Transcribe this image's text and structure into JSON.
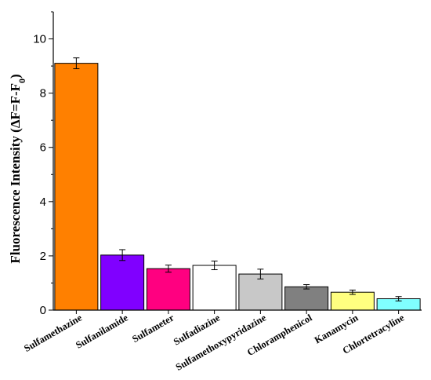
{
  "chart_data": {
    "type": "bar",
    "title": "",
    "xlabel": "",
    "ylabel": "Fluorescence Intensity (ΔF=F-F",
    "ylabel_subscript": "0",
    "ylabel_suffix": ")",
    "ylim": [
      0,
      11
    ],
    "yticks": [
      "0",
      "2",
      "4",
      "6",
      "8",
      "10"
    ],
    "categories": [
      "Sulfamethazine",
      "Sulfanilamide",
      "Sulfameter",
      "Sulfadiazine",
      "Sulfamethoxypyridazine",
      "Chloramphenicol",
      "Kanamycin",
      "Chlortetracyline"
    ],
    "values": [
      9.1,
      2.03,
      1.53,
      1.65,
      1.33,
      0.86,
      0.66,
      0.42
    ],
    "errors": [
      0.2,
      0.2,
      0.13,
      0.16,
      0.18,
      0.08,
      0.08,
      0.08
    ],
    "colors": [
      "#ff8000",
      "#8000ff",
      "#ff0080",
      "#ffffff",
      "#c8c8c8",
      "#808080",
      "#ffff80",
      "#80ffff"
    ],
    "grid": false,
    "legend": "none"
  }
}
